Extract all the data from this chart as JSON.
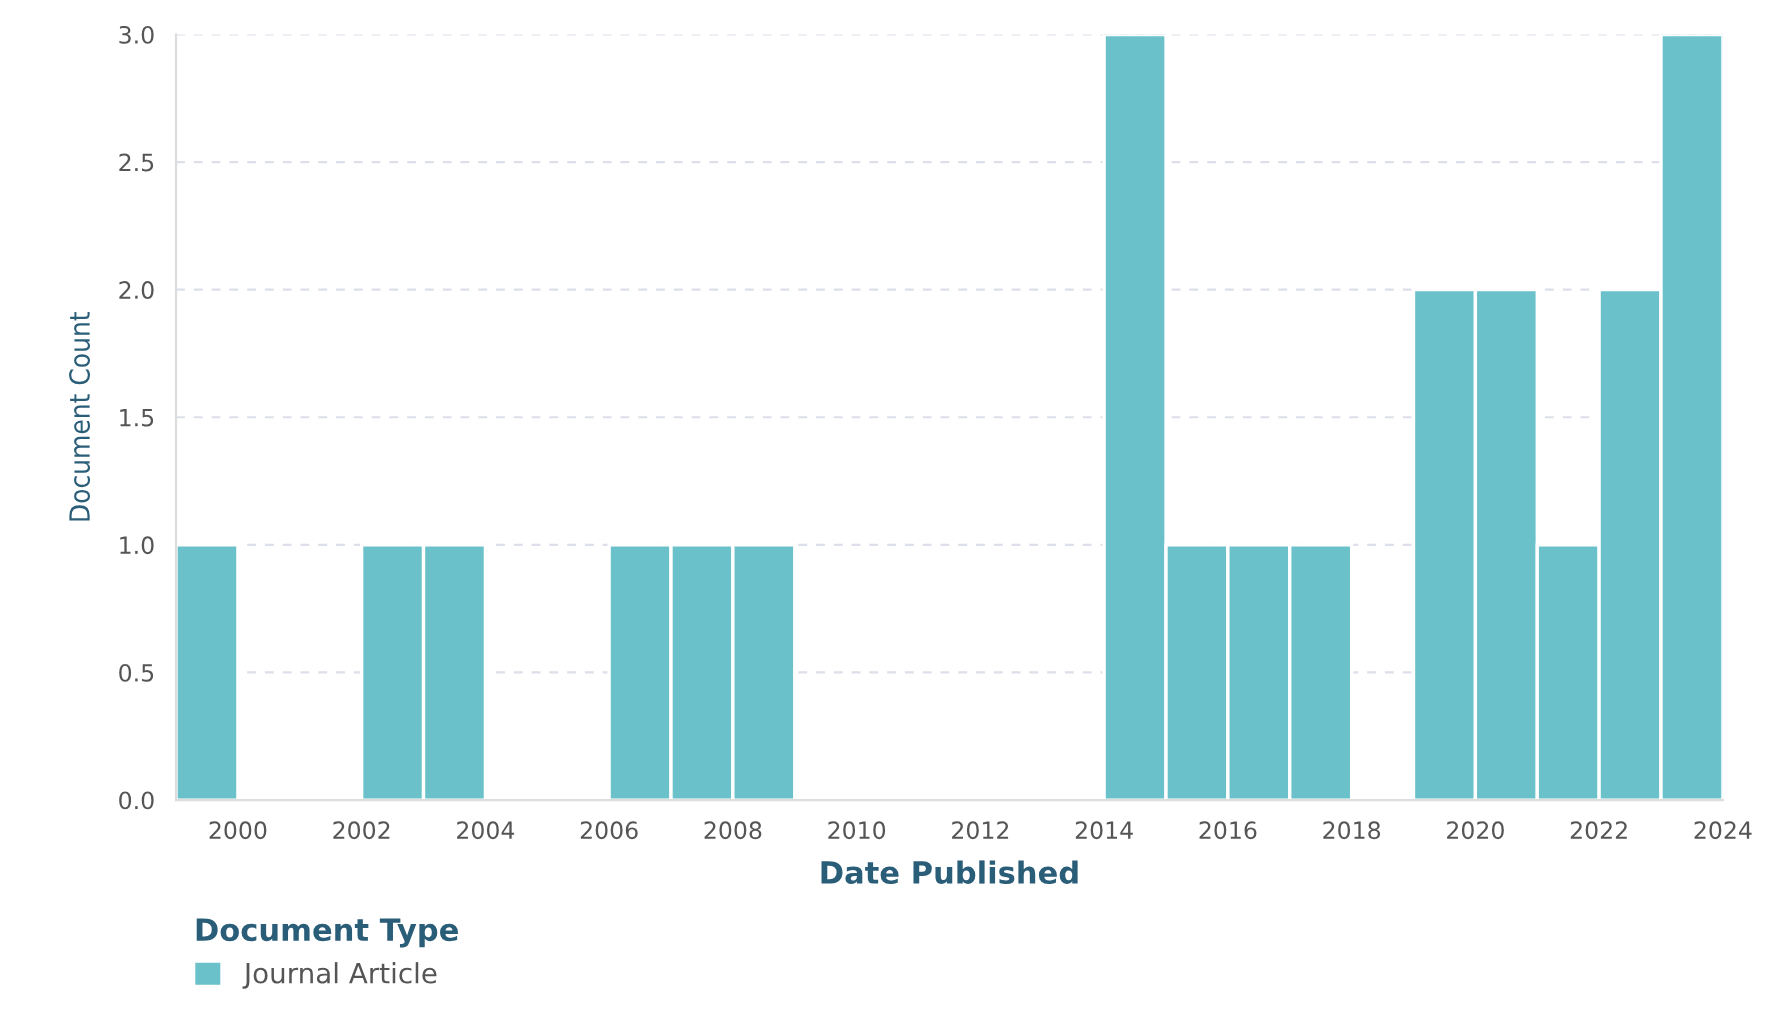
{
  "chart_data": {
    "type": "histogram",
    "xlabel": "Date Published",
    "ylabel": "Document Count",
    "legend_title": "Document Type",
    "bins": [
      1999,
      2000,
      2001,
      2002,
      2003,
      2004,
      2005,
      2006,
      2007,
      2008,
      2009,
      2010,
      2011,
      2012,
      2013,
      2014,
      2015,
      2016,
      2017,
      2018,
      2019,
      2020,
      2021,
      2022,
      2023,
      2024
    ],
    "series": [
      {
        "name": "Journal Article",
        "color": "#6ac1c9",
        "values": [
          1,
          0,
          0,
          1,
          1,
          0,
          0,
          1,
          1,
          1,
          0,
          0,
          0,
          0,
          0,
          3,
          1,
          1,
          1,
          0,
          2,
          2,
          1,
          2,
          3
        ]
      }
    ],
    "xlim": [
      1999,
      2024
    ],
    "xticks": [
      2000,
      2002,
      2004,
      2006,
      2008,
      2010,
      2012,
      2014,
      2016,
      2018,
      2020,
      2022,
      2024
    ],
    "ylim": [
      0,
      3
    ],
    "yticks": [
      {
        "value": 0,
        "label": "0.0"
      },
      {
        "value": 0.5,
        "label": "0.5"
      },
      {
        "value": 1,
        "label": "1.0"
      },
      {
        "value": 1.5,
        "label": "1.5"
      },
      {
        "value": 2,
        "label": "2.0"
      },
      {
        "value": 2.5,
        "label": "2.5"
      },
      {
        "value": 3,
        "label": "3.0"
      }
    ],
    "grid": "y",
    "legend": "bottom left"
  }
}
